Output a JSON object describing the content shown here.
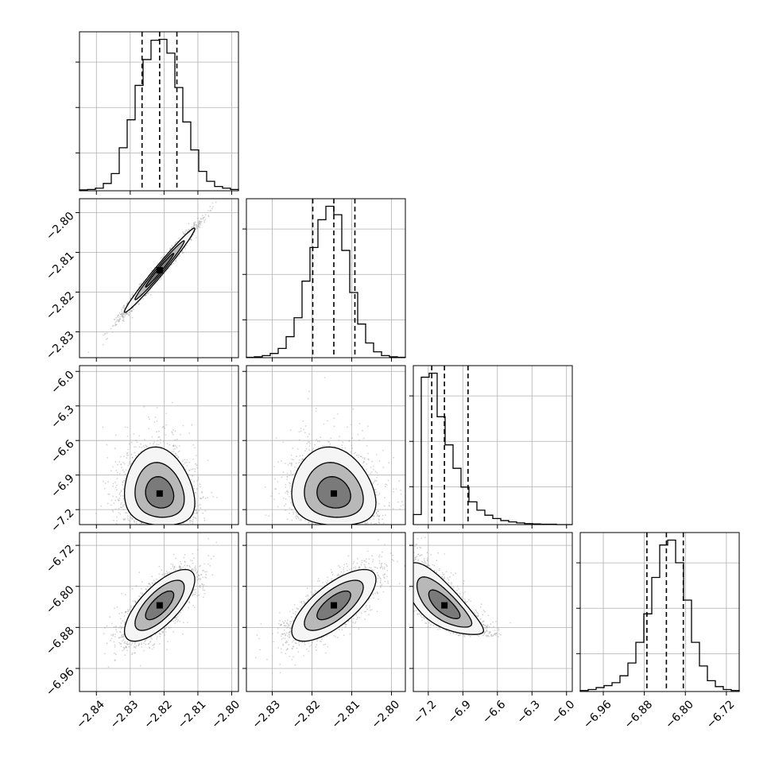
{
  "chart_data": {
    "type": "corner",
    "title": "",
    "params": [
      {
        "range": [
          -2.845,
          -2.798
        ],
        "ticks": [
          -2.84,
          -2.83,
          -2.82,
          -2.81,
          -2.8
        ],
        "tick_labels": [
          "−2.84",
          "−2.83",
          "−2.82",
          "−2.81",
          "−2.80"
        ],
        "quantiles": [
          -2.8265,
          -2.8213,
          -2.8162
        ],
        "hist_counts": [
          2,
          3,
          6,
          17,
          40,
          100,
          165,
          245,
          305,
          350,
          352,
          320,
          240,
          160,
          95,
          45,
          22,
          10,
          6,
          3
        ]
      },
      {
        "range": [
          -2.8365,
          -2.7965
        ],
        "ticks": [
          -2.83,
          -2.82,
          -2.81,
          -2.8
        ],
        "tick_labels": [
          "−2.83",
          "−2.82",
          "−2.81",
          "−2.80"
        ],
        "quantiles": [
          -2.8198,
          -2.8145,
          -2.8092
        ],
        "hist_counts": [
          1,
          2,
          5,
          10,
          22,
          50,
          95,
          182,
          262,
          328,
          360,
          340,
          255,
          155,
          80,
          35,
          14,
          5,
          2,
          1
        ]
      },
      {
        "range": [
          -7.33,
          -5.95
        ],
        "ticks": [
          -7.2,
          -6.9,
          -6.6,
          -6.3,
          -6.0
        ],
        "tick_labels": [
          "−7.2",
          "−6.9",
          "−6.6",
          "−6.3",
          "−6.0"
        ],
        "quantiles": [
          -7.17,
          -7.06,
          -6.855
        ],
        "hist_counts": [
          30,
          440,
          452,
          322,
          238,
          168,
          112,
          68,
          43,
          28,
          18,
          12,
          8,
          5,
          3,
          2,
          1,
          1,
          0,
          0
        ]
      },
      {
        "range": [
          -7.005,
          -6.695
        ],
        "ticks": [
          -6.96,
          -6.88,
          -6.8,
          -6.72
        ],
        "tick_labels": [
          "−6.96",
          "−6.88",
          "−6.80",
          "−6.72"
        ],
        "quantiles": [
          -6.875,
          -6.837,
          -6.804
        ],
        "hist_counts": [
          2,
          4,
          8,
          12,
          18,
          32,
          58,
          100,
          158,
          232,
          298,
          308,
          262,
          186,
          100,
          52,
          22,
          10,
          4,
          2
        ]
      }
    ],
    "contours": [
      {
        "row": 1,
        "col": 0,
        "mean": [
          -2.8213,
          -2.8145
        ],
        "sd": [
          0.0052,
          0.0053
        ],
        "corr": 0.985
      },
      {
        "row": 2,
        "col": 0,
        "mean": [
          -2.8213,
          -7.06
        ],
        "sd": [
          0.0052,
          0.17
        ],
        "corr": -0.12,
        "skew": 0.9
      },
      {
        "row": 2,
        "col": 1,
        "mean": [
          -2.8145,
          -7.06
        ],
        "sd": [
          0.0053,
          0.17
        ],
        "corr": -0.12,
        "skew": 0.9
      },
      {
        "row": 3,
        "col": 0,
        "mean": [
          -2.8213,
          -6.837
        ],
        "sd": [
          0.0052,
          0.035
        ],
        "corr": 0.72
      },
      {
        "row": 3,
        "col": 1,
        "mean": [
          -2.8145,
          -6.837
        ],
        "sd": [
          0.0053,
          0.035
        ],
        "corr": 0.72
      },
      {
        "row": 3,
        "col": 2,
        "mean": [
          -7.06,
          -6.837
        ],
        "sd": [
          0.17,
          0.035
        ],
        "corr": -0.75,
        "skew": 0.9
      }
    ],
    "grid": true,
    "line_color": "#000000",
    "scatter_color": "#a0a0a0",
    "grid_color": "#b0b0b0"
  }
}
